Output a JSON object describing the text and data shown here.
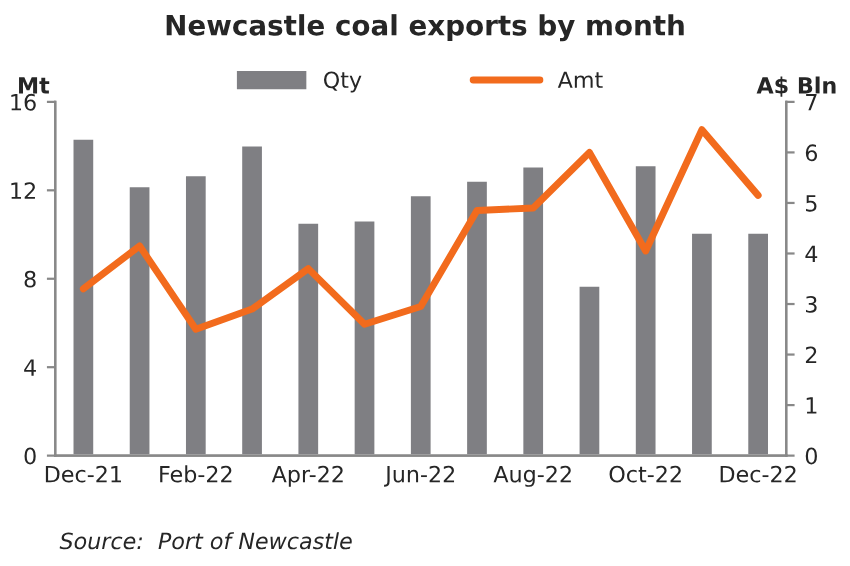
{
  "chart_data": {
    "type": "bar",
    "title": "Newcastle coal exports by month",
    "categories": [
      "Dec-21",
      null,
      "Feb-22",
      null,
      "Apr-22",
      null,
      "Jun-22",
      null,
      "Aug-22",
      null,
      "Oct-22",
      null,
      "Dec-22"
    ],
    "series": [
      {
        "name": "Qty",
        "color": "#7f7f83",
        "values": [
          14.35,
          12.2,
          12.7,
          14.05,
          10.55,
          10.65,
          11.8,
          12.45,
          13.1,
          7.7,
          13.15,
          10.1,
          10.1
        ]
      },
      {
        "name": "Amt",
        "type": "line",
        "axis": "y2",
        "color": "#f26b1d",
        "values": [
          3.3,
          4.15,
          2.5,
          2.9,
          3.7,
          2.6,
          2.95,
          4.85,
          4.9,
          6.0,
          4.05,
          6.45,
          5.15
        ]
      }
    ],
    "ylabel": "Mt",
    "y2label": "A$ Bln",
    "ylim": [
      0,
      16
    ],
    "yticks": [
      0,
      4,
      8,
      12,
      16
    ],
    "y2lim": [
      0,
      7
    ],
    "y2ticks": [
      0,
      1,
      2,
      3,
      4,
      5,
      6,
      7
    ],
    "legend": "top",
    "grid": false,
    "annotations": [
      "Source:  Port of Newcastle"
    ]
  }
}
